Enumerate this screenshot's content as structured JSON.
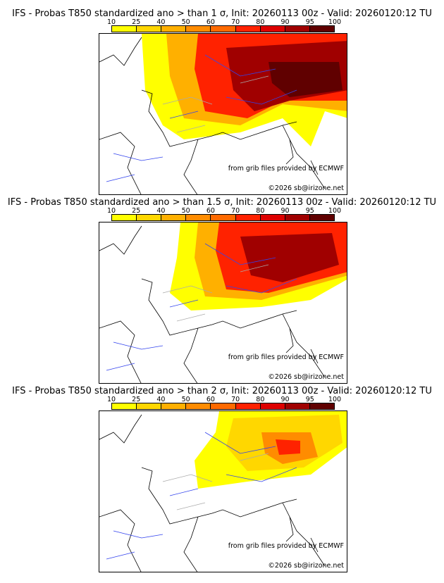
{
  "colorbar": {
    "ticks": [
      "10",
      "25",
      "40",
      "50",
      "60",
      "70",
      "80",
      "90",
      "95",
      "100"
    ],
    "colors": [
      "#ffff00",
      "#ffd700",
      "#ffb000",
      "#ff8c00",
      "#ff6a00",
      "#ff2200",
      "#dd0000",
      "#a00000",
      "#600000"
    ]
  },
  "panels": [
    {
      "title": "IFS - Probas T850  standardized ano > than 1 σ, Init: 20260113 00z - Valid: 20260120:12 TU",
      "sigma": 1
    },
    {
      "title": "IFS - Probas T850  standardized ano > than 1.5 σ, Init: 20260113 00z - Valid: 20260120:12 TU",
      "sigma": 1.5
    },
    {
      "title": "IFS - Probas T850  standardized ano > than 2 σ, Init: 20260113 00z - Valid: 20260120:12 TU",
      "sigma": 2
    }
  ],
  "credits": {
    "source": "from grib files provided by ECMWF",
    "copyright": "©2026 sb@irizone.net"
  }
}
